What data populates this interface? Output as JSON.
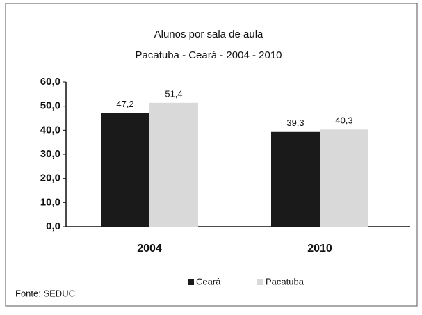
{
  "chart_data": {
    "type": "bar",
    "title": "Alunos por sala de aula",
    "subtitle": "Pacatuba - Ceará - 2004 - 2010",
    "categories": [
      "2004",
      "2010"
    ],
    "series": [
      {
        "name": "Ceará",
        "color": "#1a1a1a",
        "values": [
          47.2,
          39.3
        ],
        "value_labels": [
          "47,2",
          "39,3"
        ]
      },
      {
        "name": "Pacatuba",
        "color": "#d9d9d9",
        "values": [
          51.4,
          40.3
        ],
        "value_labels": [
          "51,4",
          "40,3"
        ]
      }
    ],
    "ylim": [
      0,
      60
    ],
    "yticks": [
      {
        "value": 0,
        "label": "0,0"
      },
      {
        "value": 10,
        "label": "10,0"
      },
      {
        "value": 20,
        "label": "20,0"
      },
      {
        "value": 30,
        "label": "30,0"
      },
      {
        "value": 40,
        "label": "40,0"
      },
      {
        "value": 50,
        "label": "50,0"
      },
      {
        "value": 60,
        "label": "60,0"
      }
    ],
    "source": "Fonte: SEDUC",
    "legend": "bottom"
  }
}
